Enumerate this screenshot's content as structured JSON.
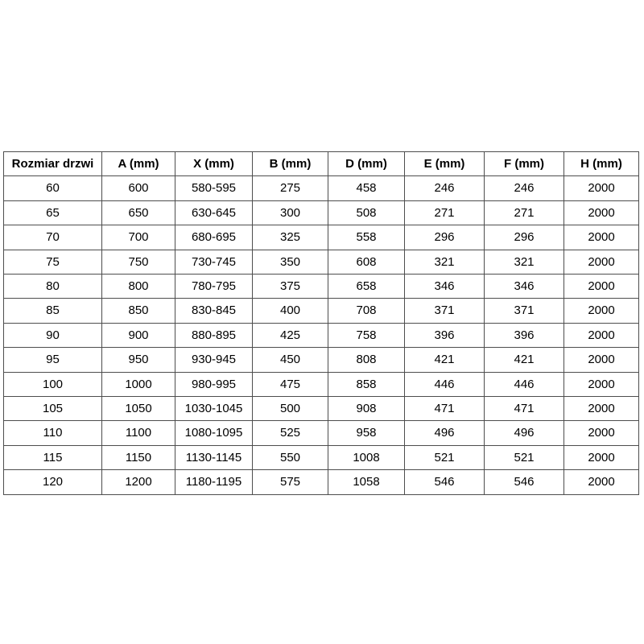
{
  "table": {
    "columns": [
      "Rozmiar drzwi",
      "A (mm)",
      "X (mm)",
      "B (mm)",
      "D (mm)",
      "E (mm)",
      "F (mm)",
      "H (mm)"
    ],
    "rows": [
      [
        "60",
        "600",
        "580-595",
        "275",
        "458",
        "246",
        "246",
        "2000"
      ],
      [
        "65",
        "650",
        "630-645",
        "300",
        "508",
        "271",
        "271",
        "2000"
      ],
      [
        "70",
        "700",
        "680-695",
        "325",
        "558",
        "296",
        "296",
        "2000"
      ],
      [
        "75",
        "750",
        "730-745",
        "350",
        "608",
        "321",
        "321",
        "2000"
      ],
      [
        "80",
        "800",
        "780-795",
        "375",
        "658",
        "346",
        "346",
        "2000"
      ],
      [
        "85",
        "850",
        "830-845",
        "400",
        "708",
        "371",
        "371",
        "2000"
      ],
      [
        "90",
        "900",
        "880-895",
        "425",
        "758",
        "396",
        "396",
        "2000"
      ],
      [
        "95",
        "950",
        "930-945",
        "450",
        "808",
        "421",
        "421",
        "2000"
      ],
      [
        "100",
        "1000",
        "980-995",
        "475",
        "858",
        "446",
        "446",
        "2000"
      ],
      [
        "105",
        "1050",
        "1030-1045",
        "500",
        "908",
        "471",
        "471",
        "2000"
      ],
      [
        "110",
        "1100",
        "1080-1095",
        "525",
        "958",
        "496",
        "496",
        "2000"
      ],
      [
        "115",
        "1150",
        "1130-1145",
        "550",
        "1008",
        "521",
        "521",
        "2000"
      ],
      [
        "120",
        "1200",
        "1180-1195",
        "575",
        "1058",
        "546",
        "546",
        "2000"
      ]
    ],
    "border_color": "#4d4d4d",
    "text_color": "#000000",
    "background_color": "#ffffff"
  }
}
